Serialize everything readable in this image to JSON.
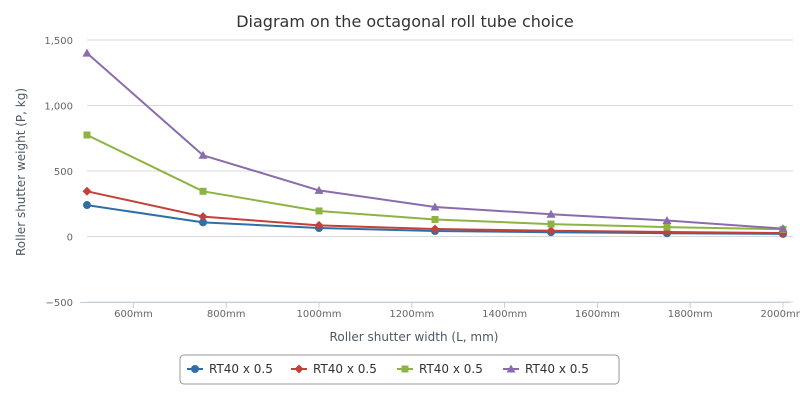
{
  "chart_data": {
    "type": "line",
    "title": "Diagram on the octagonal roll tube choice",
    "xlabel": "Roller shutter width (L, mm)",
    "ylabel": "Roller shutter weight (P, kg)",
    "x": [
      500,
      750,
      1000,
      1250,
      1500,
      1750,
      2000
    ],
    "xlim": [
      500,
      2000
    ],
    "ylim": [
      -500,
      1500
    ],
    "x_ticks": [
      600,
      800,
      1000,
      1200,
      1400,
      1600,
      1800,
      2000
    ],
    "x_tick_labels": [
      "600mm",
      "800mm",
      "1000mm",
      "1200mm",
      "1400mm",
      "1600mm",
      "1800mm",
      "2000mm"
    ],
    "y_ticks": [
      -500,
      0,
      500,
      1000,
      1500
    ],
    "y_tick_labels": [
      "−500",
      "0",
      "500",
      "1,000",
      "1,500"
    ],
    "grid": "horizontal",
    "legend_position": "bottom-center",
    "series": [
      {
        "name": "RT40 x 0.5",
        "color": "#2f6fa5",
        "marker": "circle",
        "values": [
          240,
          108,
          65,
          42,
          33,
          25,
          20
        ]
      },
      {
        "name": "RT40 x 0.5",
        "color": "#c4403a",
        "marker": "diamond",
        "values": [
          345,
          152,
          85,
          57,
          44,
          34,
          27
        ]
      },
      {
        "name": "RT40 x 0.5",
        "color": "#8db443",
        "marker": "square",
        "values": [
          775,
          345,
          195,
          130,
          95,
          72,
          55
        ]
      },
      {
        "name": "RT40 x 0.5",
        "color": "#8a6cac",
        "marker": "triangle",
        "values": [
          1400,
          620,
          352,
          225,
          170,
          122,
          60
        ]
      }
    ]
  }
}
